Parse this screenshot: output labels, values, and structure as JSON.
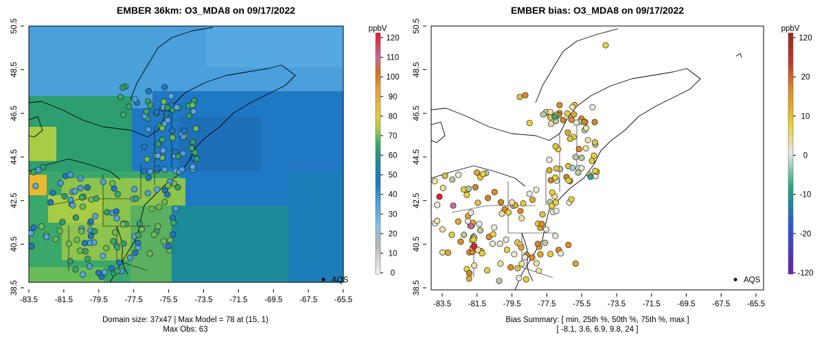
{
  "left_panel": {
    "title": "EMBER 36km: O3_MDA8 on 09/17/2022",
    "colorbar_unit": "ppbV",
    "colorbar_ticks": [
      "0",
      "10",
      "20",
      "30",
      "40",
      "50",
      "60",
      "70",
      "80",
      "90",
      "100",
      "110",
      "120"
    ],
    "caption_line1": "Domain size: 37x47 | Max Model = 78 at (15, 1)",
    "caption_line2": "Max Obs: 63",
    "legend_label": "AQS"
  },
  "right_panel": {
    "title": "EMBER bias: O3_MDA8 on 09/17/2022",
    "colorbar_unit": "ppbV",
    "colorbar_ticks": [
      "-120",
      "-20",
      "-10",
      "0",
      "10",
      "20",
      "120"
    ],
    "caption_line1": "Bias Summary: [ min, 25th %, 50th %, 75th %, max ]",
    "caption_line2": "[ -8.1,   3.6,   6.9,   9.8,   24 ]",
    "legend_label": "AQS"
  },
  "axes": {
    "lon_ticks": [
      "-83.5",
      "-81.5",
      "-79.5",
      "-77.5",
      "-75.5",
      "-73.5",
      "-71.5",
      "-69.5",
      "-67.5",
      "-65.5"
    ],
    "lat_ticks": [
      "38.5",
      "40.5",
      "42.5",
      "44.5",
      "46.5",
      "48.5",
      "50.5"
    ]
  },
  "colors": {
    "conc_scale": [
      "#f2f2f2",
      "#9e9e9e",
      "#87c0e8",
      "#1f78c4",
      "#2e9e6e",
      "#a8cc45",
      "#e8c83a",
      "#e8a23a",
      "#d96e1e",
      "#c46a9c",
      "#e81a2e"
    ],
    "bias_scale": [
      "#6a1fb0",
      "#2b55d9",
      "#1fa878",
      "#e6e6e6",
      "#e8cf3a",
      "#e08a25",
      "#8a2d22"
    ]
  }
}
